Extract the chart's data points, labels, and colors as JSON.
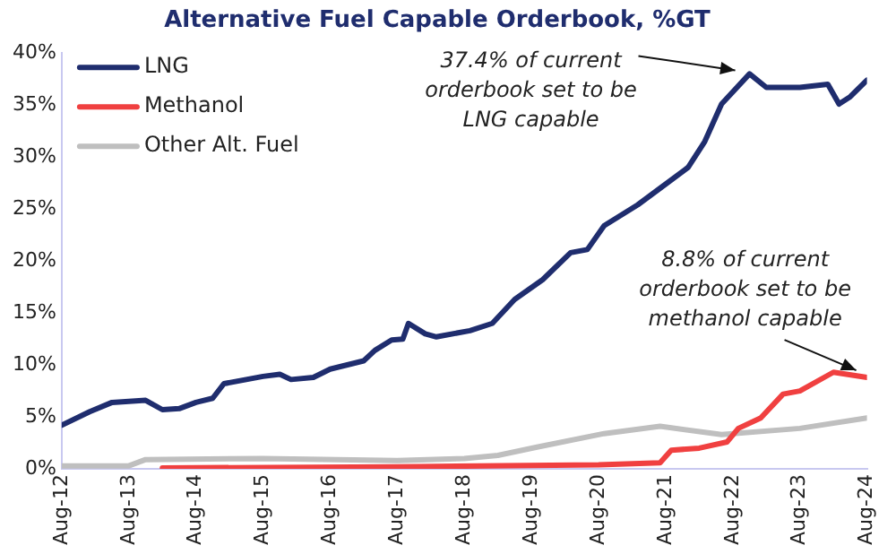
{
  "chart_data": {
    "type": "line",
    "title": "Alternative Fuel Capable Orderbook, %GT",
    "xlim": [
      "2012-08",
      "2024-08"
    ],
    "xticks": [
      {
        "value": "2012-08",
        "label": "Aug-12"
      },
      {
        "value": "2013-08",
        "label": "Aug-13"
      },
      {
        "value": "2014-08",
        "label": "Aug-14"
      },
      {
        "value": "2015-08",
        "label": "Aug-15"
      },
      {
        "value": "2016-08",
        "label": "Aug-16"
      },
      {
        "value": "2017-08",
        "label": "Aug-17"
      },
      {
        "value": "2018-08",
        "label": "Aug-18"
      },
      {
        "value": "2019-08",
        "label": "Aug-19"
      },
      {
        "value": "2020-08",
        "label": "Aug-20"
      },
      {
        "value": "2021-08",
        "label": "Aug-21"
      },
      {
        "value": "2022-08",
        "label": "Aug-22"
      },
      {
        "value": "2023-08",
        "label": "Aug-23"
      },
      {
        "value": "2024-08",
        "label": "Aug-24"
      }
    ],
    "ylim": [
      0,
      40
    ],
    "yticks": [
      {
        "value": 0,
        "label": "0%"
      },
      {
        "value": 5,
        "label": "5%"
      },
      {
        "value": 10,
        "label": "10%"
      },
      {
        "value": 15,
        "label": "15%"
      },
      {
        "value": 20,
        "label": "20%"
      },
      {
        "value": 25,
        "label": "25%"
      },
      {
        "value": 30,
        "label": "30%"
      },
      {
        "value": 35,
        "label": "35%"
      },
      {
        "value": 40,
        "label": "40%"
      }
    ],
    "grid": false,
    "legend": "top left",
    "marker": "none",
    "line_style": "solid",
    "series": [
      {
        "name": "LNG",
        "color": "#1f2d6e",
        "x": [
          "2012-08",
          "2013-01",
          "2013-05",
          "2013-08",
          "2013-11",
          "2014-02",
          "2014-05",
          "2014-08",
          "2014-11",
          "2015-01",
          "2015-08",
          "2015-11",
          "2016-01",
          "2016-05",
          "2016-08",
          "2017-02",
          "2017-04",
          "2017-07",
          "2017-09",
          "2017-10",
          "2018-01",
          "2018-03",
          "2018-09",
          "2019-01",
          "2019-05",
          "2019-10",
          "2020-03",
          "2020-06",
          "2020-09",
          "2021-03",
          "2021-07",
          "2021-12",
          "2022-03",
          "2022-06",
          "2022-11",
          "2023-02",
          "2023-08",
          "2024-01",
          "2024-03",
          "2024-05",
          "2024-08"
        ],
        "values": [
          4.2,
          5.5,
          6.4,
          6.5,
          6.6,
          5.7,
          5.8,
          6.4,
          6.8,
          8.2,
          8.9,
          9.1,
          8.6,
          8.8,
          9.6,
          10.4,
          11.4,
          12.4,
          12.5,
          14.0,
          13.0,
          12.7,
          13.3,
          14.0,
          16.3,
          18.2,
          20.8,
          21.1,
          23.4,
          25.4,
          27.0,
          29.0,
          31.5,
          35.1,
          38.0,
          36.7,
          36.7,
          37.0,
          35.1,
          35.8,
          37.4
        ]
      },
      {
        "name": "Methanol",
        "color": "#f04040",
        "x": [
          "2014-02",
          "2017-08",
          "2020-08",
          "2021-07",
          "2021-09",
          "2022-02",
          "2022-07",
          "2022-09",
          "2023-01",
          "2023-05",
          "2023-08",
          "2024-02",
          "2024-08"
        ],
        "values": [
          0.1,
          0.2,
          0.4,
          0.6,
          1.8,
          2.0,
          2.6,
          3.9,
          4.9,
          7.2,
          7.5,
          9.3,
          8.8
        ]
      },
      {
        "name": "Other Alt. Fuel",
        "color": "#bfbfbf",
        "x": [
          "2012-08",
          "2013-08",
          "2013-11",
          "2015-08",
          "2017-08",
          "2018-08",
          "2019-02",
          "2019-09",
          "2020-09",
          "2021-07",
          "2022-06",
          "2023-08",
          "2024-08"
        ],
        "values": [
          0.3,
          0.3,
          0.9,
          1.0,
          0.8,
          1.0,
          1.3,
          2.1,
          3.4,
          4.1,
          3.3,
          3.9,
          4.9
        ]
      }
    ],
    "annotations": [
      {
        "text": "37.4% of current orderbook set to be LNG capable",
        "x": "2022-11",
        "y": 38.0
      },
      {
        "text": "8.8% of current orderbook set to be methanol capable",
        "x": "2024-08",
        "y": 8.8
      }
    ]
  }
}
